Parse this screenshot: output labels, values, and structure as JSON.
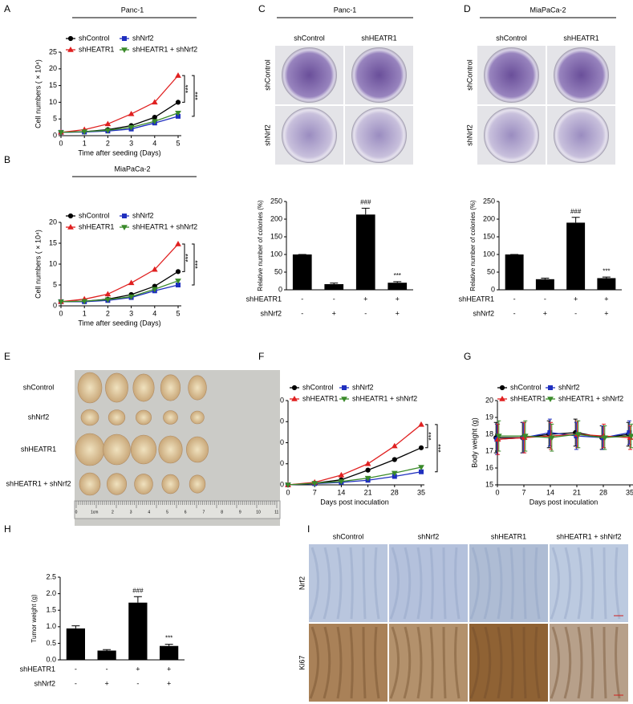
{
  "chart_data": [
    {
      "type": "line",
      "title": "Panc-1",
      "x": [
        0,
        1,
        2,
        3,
        4,
        5
      ],
      "xlim": [
        0,
        5
      ],
      "xticks": [
        0,
        1,
        2,
        3,
        4,
        5
      ],
      "ylim": [
        0,
        25
      ],
      "yticks": [
        0,
        5,
        10,
        15,
        20,
        25
      ],
      "x_label": "Time after seeding (Days)",
      "y_label": "Cell numbers ( × 10⁴)",
      "series": [
        {
          "name": "shControl",
          "color": "#000000",
          "values": [
            1,
            1.2,
            1.8,
            3,
            5.5,
            10
          ]
        },
        {
          "name": "shNrf2",
          "color": "#1f2fbf",
          "values": [
            1,
            1.1,
            1.4,
            2,
            3.8,
            5.8
          ]
        },
        {
          "name": "shHEATR1",
          "color": "#e02020",
          "values": [
            1,
            1.8,
            3.5,
            6.5,
            10,
            18
          ]
        },
        {
          "name": "shHEATR1 + shNrf2",
          "color": "#3a8a2a",
          "values": [
            1,
            1.2,
            1.6,
            2.5,
            4.3,
            6.8
          ]
        }
      ],
      "annotations": [
        "***",
        "***"
      ]
    },
    {
      "type": "line",
      "title": "MiaPaCa-2",
      "x": [
        0,
        1,
        2,
        3,
        4,
        5
      ],
      "xlim": [
        0,
        5
      ],
      "xticks": [
        0,
        1,
        2,
        3,
        4,
        5
      ],
      "ylim": [
        0,
        20
      ],
      "yticks": [
        0,
        5,
        10,
        15,
        20
      ],
      "x_label": "Time after seeding (Days)",
      "y_label": "Cell numbers ( × 10⁴)",
      "series": [
        {
          "name": "shControl",
          "color": "#000000",
          "values": [
            1,
            1.1,
            1.6,
            2.7,
            4.7,
            8.2
          ]
        },
        {
          "name": "shNrf2",
          "color": "#1f2fbf",
          "values": [
            1,
            1,
            1.3,
            2,
            3.6,
            5
          ]
        },
        {
          "name": "shHEATR1",
          "color": "#e02020",
          "values": [
            1,
            1.6,
            2.8,
            5.5,
            8.7,
            14.8
          ]
        },
        {
          "name": "shHEATR1 + shNrf2",
          "color": "#3a8a2a",
          "values": [
            1,
            1.1,
            1.5,
            2.2,
            4,
            6
          ]
        }
      ],
      "annotations": [
        "***",
        "***"
      ]
    },
    {
      "type": "bar",
      "values": [
        100,
        16,
        213,
        20
      ],
      "errors": [
        0,
        3,
        18,
        3
      ],
      "color": "#000000",
      "ylim": [
        0,
        250
      ],
      "yticks": [
        0,
        50,
        100,
        150,
        200,
        250
      ],
      "y_label": "Relative number of colonies (%)",
      "conditions": [
        {
          "name": "shHEATR1",
          "signs": [
            "-",
            "-",
            "+",
            "+"
          ]
        },
        {
          "name": "shNrf2",
          "signs": [
            "-",
            "+",
            "-",
            "+"
          ]
        }
      ],
      "annotations": [
        "###",
        "***"
      ]
    },
    {
      "type": "bar",
      "values": [
        100,
        30,
        190,
        33
      ],
      "errors": [
        0,
        3,
        15,
        3
      ],
      "color": "#000000",
      "ylim": [
        0,
        250
      ],
      "yticks": [
        0,
        50,
        100,
        150,
        200,
        250
      ],
      "y_label": "Relative number of colonies (%)",
      "conditions": [
        {
          "name": "shHEATR1",
          "signs": [
            "-",
            "-",
            "+",
            "+"
          ]
        },
        {
          "name": "shNrf2",
          "signs": [
            "-",
            "+",
            "-",
            "+"
          ]
        }
      ],
      "annotations": [
        "###",
        "***"
      ]
    },
    {
      "type": "line",
      "x": [
        0,
        7,
        14,
        21,
        28,
        35
      ],
      "xlim": [
        0,
        35
      ],
      "xticks": [
        0,
        7,
        14,
        21,
        28,
        35
      ],
      "ylim": [
        0,
        2000
      ],
      "yticks": [
        0,
        500,
        1000,
        1500,
        2000
      ],
      "x_label": "Days post inoculation",
      "y_label": "Tumor volume (mm³)",
      "series": [
        {
          "name": "shControl",
          "color": "#000000",
          "values": [
            0,
            40,
            120,
            350,
            600,
            880
          ]
        },
        {
          "name": "shNrf2",
          "color": "#1f2fbf",
          "values": [
            0,
            30,
            60,
            110,
            200,
            310
          ]
        },
        {
          "name": "shHEATR1",
          "color": "#e02020",
          "values": [
            0,
            60,
            230,
            500,
            920,
            1430
          ]
        },
        {
          "name": "shHEATR1 + shNrf2",
          "color": "#3a8a2a",
          "values": [
            0,
            40,
            80,
            160,
            280,
            420
          ]
        }
      ],
      "annotations": [
        "***",
        "***"
      ]
    },
    {
      "type": "line",
      "x": [
        0,
        7,
        14,
        21,
        28,
        35
      ],
      "xlim": [
        0,
        35
      ],
      "xticks": [
        0,
        7,
        14,
        21,
        28,
        35
      ],
      "ylim": [
        15,
        20
      ],
      "yticks": [
        15,
        16,
        17,
        18,
        19,
        20
      ],
      "x_label": "Days post inoculation",
      "y_label": "Body weight (g)",
      "series": [
        {
          "name": "shControl",
          "color": "#000000",
          "values": [
            17.8,
            17.8,
            18.0,
            18.1,
            17.8,
            18.0
          ],
          "errors": [
            0.9,
            0.9,
            0.8,
            0.8,
            0.7,
            0.7
          ]
        },
        {
          "name": "shNrf2",
          "color": "#1f2fbf",
          "values": [
            17.7,
            17.8,
            18.1,
            17.9,
            17.8,
            18.1
          ],
          "errors": [
            0.9,
            0.9,
            0.8,
            0.8,
            0.7,
            0.7
          ]
        },
        {
          "name": "shHEATR1",
          "color": "#e02020",
          "values": [
            17.7,
            17.8,
            17.9,
            18.0,
            17.9,
            17.8
          ],
          "errors": [
            0.9,
            0.9,
            0.8,
            0.8,
            0.7,
            0.7
          ]
        },
        {
          "name": "shHEATR1 + shNrf2",
          "color": "#3a8a2a",
          "values": [
            17.9,
            17.9,
            17.8,
            18.0,
            17.8,
            17.9
          ],
          "errors": [
            0.9,
            0.9,
            0.8,
            0.8,
            0.7,
            0.7
          ]
        }
      ]
    },
    {
      "type": "bar",
      "values": [
        0.95,
        0.28,
        1.73,
        0.42
      ],
      "errors": [
        0.08,
        0.03,
        0.18,
        0.05
      ],
      "color": "#000000",
      "ylim": [
        0,
        2.5
      ],
      "yticks": [
        {
          "value": 0,
          "label": "0.0"
        },
        0.5,
        {
          "value": 1,
          "label": "1.0"
        },
        1.5,
        {
          "value": 2,
          "label": "2.0"
        },
        2.5
      ],
      "y_label": "Tumor weight (g)",
      "conditions": [
        {
          "name": "shHEATR1",
          "signs": [
            "-",
            "-",
            "+",
            "+"
          ]
        },
        {
          "name": "shNrf2",
          "signs": [
            "-",
            "+",
            "-",
            "+"
          ]
        }
      ],
      "annotations": [
        "###",
        "***"
      ]
    }
  ],
  "panels": {
    "letters": [
      "A",
      "B",
      "C",
      "D",
      "E",
      "F",
      "G",
      "H",
      "I"
    ],
    "colony_c": {
      "title": "Panc-1",
      "columns": [
        "shControl",
        "shHEATR1"
      ],
      "rows": [
        "shControl",
        "shNrf2"
      ]
    },
    "colony_d": {
      "title": "MiaPaCa-2",
      "columns": [
        "shControl",
        "shHEATR1"
      ],
      "rows": [
        "shControl",
        "shNrf2"
      ]
    },
    "tumor_e": {
      "rows": [
        "shControl",
        "shNrf2",
        "shHEATR1",
        "shHEATR1 + shNrf2"
      ],
      "ruler": [
        "0",
        "1cm",
        "2",
        "3",
        "4",
        "5",
        "6",
        "7",
        "8",
        "9",
        "10",
        "11"
      ]
    },
    "ihc_i": {
      "columns": [
        "shControl",
        "shNrf2",
        "shHEATR1",
        "shHEATR1 + shNrf2"
      ],
      "rows": [
        "Nrf2",
        "Ki67"
      ]
    }
  }
}
